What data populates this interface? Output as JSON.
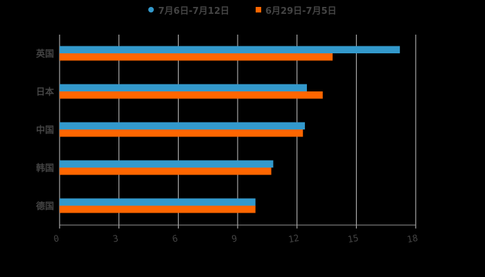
{
  "chart_data": {
    "type": "bar",
    "orientation": "horizontal",
    "title": "",
    "xlabel": "",
    "ylabel": "",
    "categories": [
      "英国",
      "日本",
      "中国",
      "韩国",
      "德国"
    ],
    "series": [
      {
        "name": "7月6日-7月12日",
        "color": "#3399cc",
        "marker": "circle",
        "values": [
          17.2,
          12.5,
          12.4,
          10.8,
          9.9
        ]
      },
      {
        "name": "6月29日-7月5日",
        "color": "#ff6600",
        "marker": "square",
        "values": [
          13.8,
          13.3,
          12.3,
          10.7,
          9.9
        ]
      }
    ],
    "xlim": [
      0,
      18
    ],
    "xticks": [
      0,
      3,
      6,
      9,
      12,
      15,
      18
    ],
    "grid": true,
    "legend_position": "top"
  },
  "colors": {
    "background": "#000000",
    "grid": "#cccccc",
    "text": "#444444"
  }
}
